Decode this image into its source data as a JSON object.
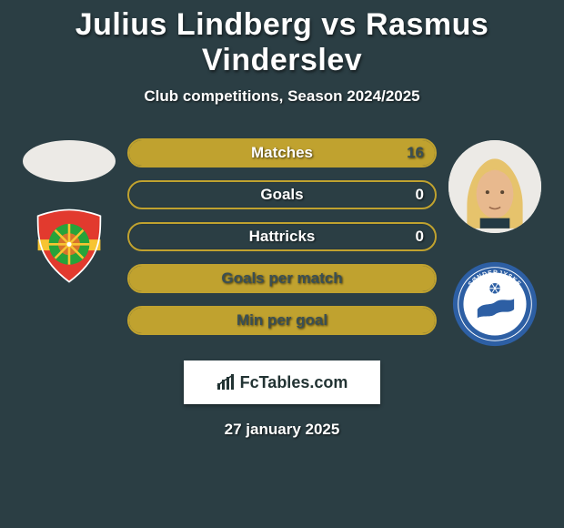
{
  "title": "Julius Lindberg vs Rasmus Vinderslev",
  "subtitle": "Club competitions, Season 2024/2025",
  "date": "27 january 2025",
  "fctables_label": "FcTables.com",
  "bars": [
    {
      "label": "Matches",
      "right_value": "16",
      "fill_pct": 100,
      "border_color": "#c0a22f",
      "fill_color": "#c0a22f",
      "text_color": "#ffffff",
      "num_right_color": "#3a4f54"
    },
    {
      "label": "Goals",
      "right_value": "0",
      "fill_pct": 0,
      "border_color": "#c0a22f",
      "fill_color": "#c0a22f",
      "text_color": "#ffffff",
      "num_right_color": "#ffffff"
    },
    {
      "label": "Hattricks",
      "right_value": "0",
      "fill_pct": 0,
      "border_color": "#c0a22f",
      "fill_color": "#c0a22f",
      "text_color": "#ffffff",
      "num_right_color": "#ffffff"
    },
    {
      "label": "Goals per match",
      "right_value": "",
      "fill_pct": 100,
      "border_color": "#c0a22f",
      "fill_color": "#c0a22f",
      "text_color": "#3a4f54",
      "num_right_color": "#ffffff"
    },
    {
      "label": "Min per goal",
      "right_value": "",
      "fill_pct": 100,
      "border_color": "#c0a22f",
      "fill_color": "#c0a22f",
      "text_color": "#3a4f54",
      "num_right_color": "#ffffff"
    }
  ],
  "left_player": {
    "face_bg": "#eceae6",
    "club": {
      "shield_main": "#e23a2e",
      "shield_band": "#f7c431",
      "center_ring": "#27a33a",
      "center_inner": "#d6732c",
      "stripe": "#ffffff"
    }
  },
  "right_player": {
    "face_bg": "#eceae6",
    "hair": "#e6c36c",
    "skin": "#e8b98e",
    "club": {
      "ring_outer": "#2d5fa4",
      "ring_text_bg": "#2d5fa4",
      "center_bg": "#ffffff",
      "accent": "#2d5fa4"
    }
  },
  "colors": {
    "page_bg": "#2b3e44",
    "text": "#ffffff"
  }
}
